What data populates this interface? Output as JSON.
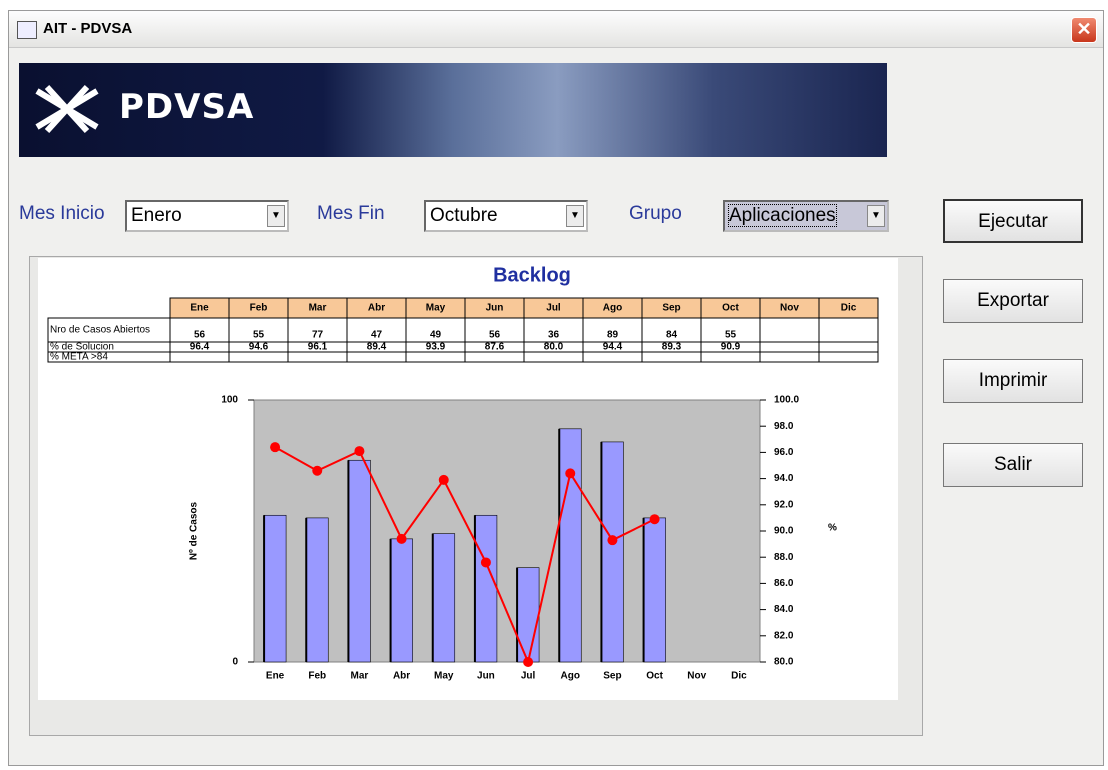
{
  "window": {
    "title": "AIT - PDVSA"
  },
  "banner": {
    "logo_text": "PDVSA"
  },
  "form": {
    "fields": [
      {
        "label": "Mes Inicio",
        "value": "Enero"
      },
      {
        "label": "Mes Fin",
        "value": "Octubre"
      },
      {
        "label": "Grupo",
        "value": "Aplicaciones"
      }
    ]
  },
  "buttons": [
    "Ejecutar",
    "Exportar",
    "Imprimir",
    "Salir"
  ],
  "chart_data": {
    "type": "bar",
    "title": "Backlog",
    "categories": [
      "Ene",
      "Feb",
      "Mar",
      "Abr",
      "May",
      "Jun",
      "Jul",
      "Ago",
      "Sep",
      "Oct",
      "Nov",
      "Dic"
    ],
    "y_label": "Nº de Casos",
    "y2_label": "%",
    "ylim": [
      0,
      100
    ],
    "yticks": [
      0,
      100
    ],
    "y2lim": [
      80,
      100
    ],
    "y2ticks": [
      {
        "value": 80,
        "label": "80.0"
      },
      {
        "value": 82,
        "label": "82.0"
      },
      {
        "value": 84,
        "label": "84.0"
      },
      {
        "value": 86,
        "label": "86.0"
      },
      {
        "value": 88,
        "label": "88.0"
      },
      {
        "value": 90,
        "label": "90.0"
      },
      {
        "value": 92,
        "label": "92.0"
      },
      {
        "value": 94,
        "label": "94.0"
      },
      {
        "value": 96,
        "label": "96.0"
      },
      {
        "value": 98,
        "label": "98.0"
      },
      {
        "value": 100,
        "label": "100.0"
      }
    ],
    "series": [
      {
        "name": "Nro de Casos Abiertos",
        "type": "bar",
        "color": "#9999ff",
        "values": [
          56,
          55,
          77,
          47,
          49,
          56,
          36,
          89,
          84,
          55,
          null,
          null
        ]
      },
      {
        "name": "% de Solucion",
        "type": "line",
        "axis": "y2",
        "color": "#ff0000",
        "values": [
          96.4,
          94.6,
          96.1,
          89.4,
          93.9,
          87.6,
          80.0,
          94.4,
          89.3,
          90.9,
          null,
          null
        ],
        "value_labels": [
          "96.4",
          "94.6",
          "96.1",
          "89.4",
          "93.9",
          "87.6",
          "80.0",
          "94.4",
          "89.3",
          "90.9",
          null,
          null
        ]
      },
      {
        "name": "% META >84",
        "type": "line",
        "axis": "y2",
        "color": "#000000",
        "values": [
          null,
          null,
          null,
          null,
          null,
          null,
          null,
          null,
          null,
          null,
          null,
          null
        ]
      }
    ]
  }
}
